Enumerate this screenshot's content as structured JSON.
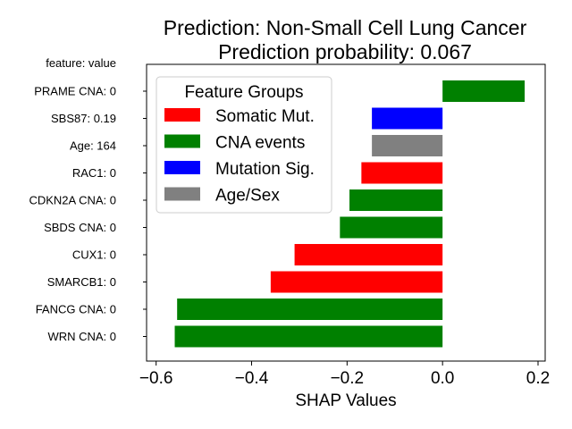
{
  "chart_data": {
    "type": "bar",
    "orientation": "horizontal",
    "title": "Prediction: Non-Small Cell Lung Cancer",
    "subtitle": "Prediction probability: 0.067",
    "y_header": "feature: value",
    "xlabel": "SHAP Values",
    "xlim": [
      -0.62,
      0.215
    ],
    "xticks": [
      -0.6,
      -0.4,
      -0.2,
      0.0,
      0.2
    ],
    "xtick_labels": [
      "−0.6",
      "−0.4",
      "−0.2",
      "0.0",
      "0.2"
    ],
    "grid": false,
    "legend": {
      "title": "Feature Groups",
      "placement": "top-left",
      "entries": [
        {
          "label": "Somatic Mut.",
          "color": "#ff0000"
        },
        {
          "label": "CNA events",
          "color": "#008000"
        },
        {
          "label": "Mutation Sig.",
          "color": "#0000ff"
        },
        {
          "label": "Age/Sex",
          "color": "#808080"
        }
      ]
    },
    "bars": [
      {
        "label": "PRAME CNA: 0",
        "value": 0.172,
        "group": "CNA events",
        "color": "#008000"
      },
      {
        "label": "SBS87: 0.19",
        "value": -0.148,
        "group": "Mutation Sig.",
        "color": "#0000ff"
      },
      {
        "label": "Age: 164",
        "value": -0.148,
        "group": "Age/Sex",
        "color": "#808080"
      },
      {
        "label": "RAC1: 0",
        "value": -0.17,
        "group": "Somatic Mut.",
        "color": "#ff0000"
      },
      {
        "label": "CDKN2A CNA: 0",
        "value": -0.195,
        "group": "CNA events",
        "color": "#008000"
      },
      {
        "label": "SBDS CNA: 0",
        "value": -0.215,
        "group": "CNA events",
        "color": "#008000"
      },
      {
        "label": "CUX1: 0",
        "value": -0.31,
        "group": "Somatic Mut.",
        "color": "#ff0000"
      },
      {
        "label": "SMARCB1: 0",
        "value": -0.36,
        "group": "Somatic Mut.",
        "color": "#ff0000"
      },
      {
        "label": "FANCG CNA: 0",
        "value": -0.556,
        "group": "CNA events",
        "color": "#008000"
      },
      {
        "label": "WRN CNA: 0",
        "value": -0.561,
        "group": "CNA events",
        "color": "#008000"
      }
    ]
  }
}
